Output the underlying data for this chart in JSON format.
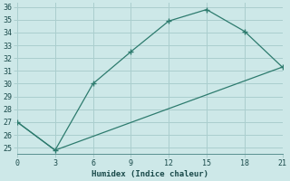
{
  "xlabel": "Humidex (Indice chaleur)",
  "line1_x": [
    0,
    3,
    6,
    9,
    12,
    15,
    18,
    21
  ],
  "line1_y": [
    27,
    24.8,
    30,
    32.5,
    34.9,
    35.8,
    34.1,
    31.3
  ],
  "line2_x": [
    0,
    3,
    21
  ],
  "line2_y": [
    27,
    24.8,
    31.3
  ],
  "line_color": "#2d7b6e",
  "bg_color": "#cde8e8",
  "grid_color": "#aacece",
  "xlim": [
    0,
    21
  ],
  "ylim": [
    25,
    36
  ],
  "xticks": [
    0,
    3,
    6,
    9,
    12,
    15,
    18,
    21
  ],
  "yticks": [
    25,
    26,
    27,
    28,
    29,
    30,
    31,
    32,
    33,
    34,
    35,
    36
  ]
}
